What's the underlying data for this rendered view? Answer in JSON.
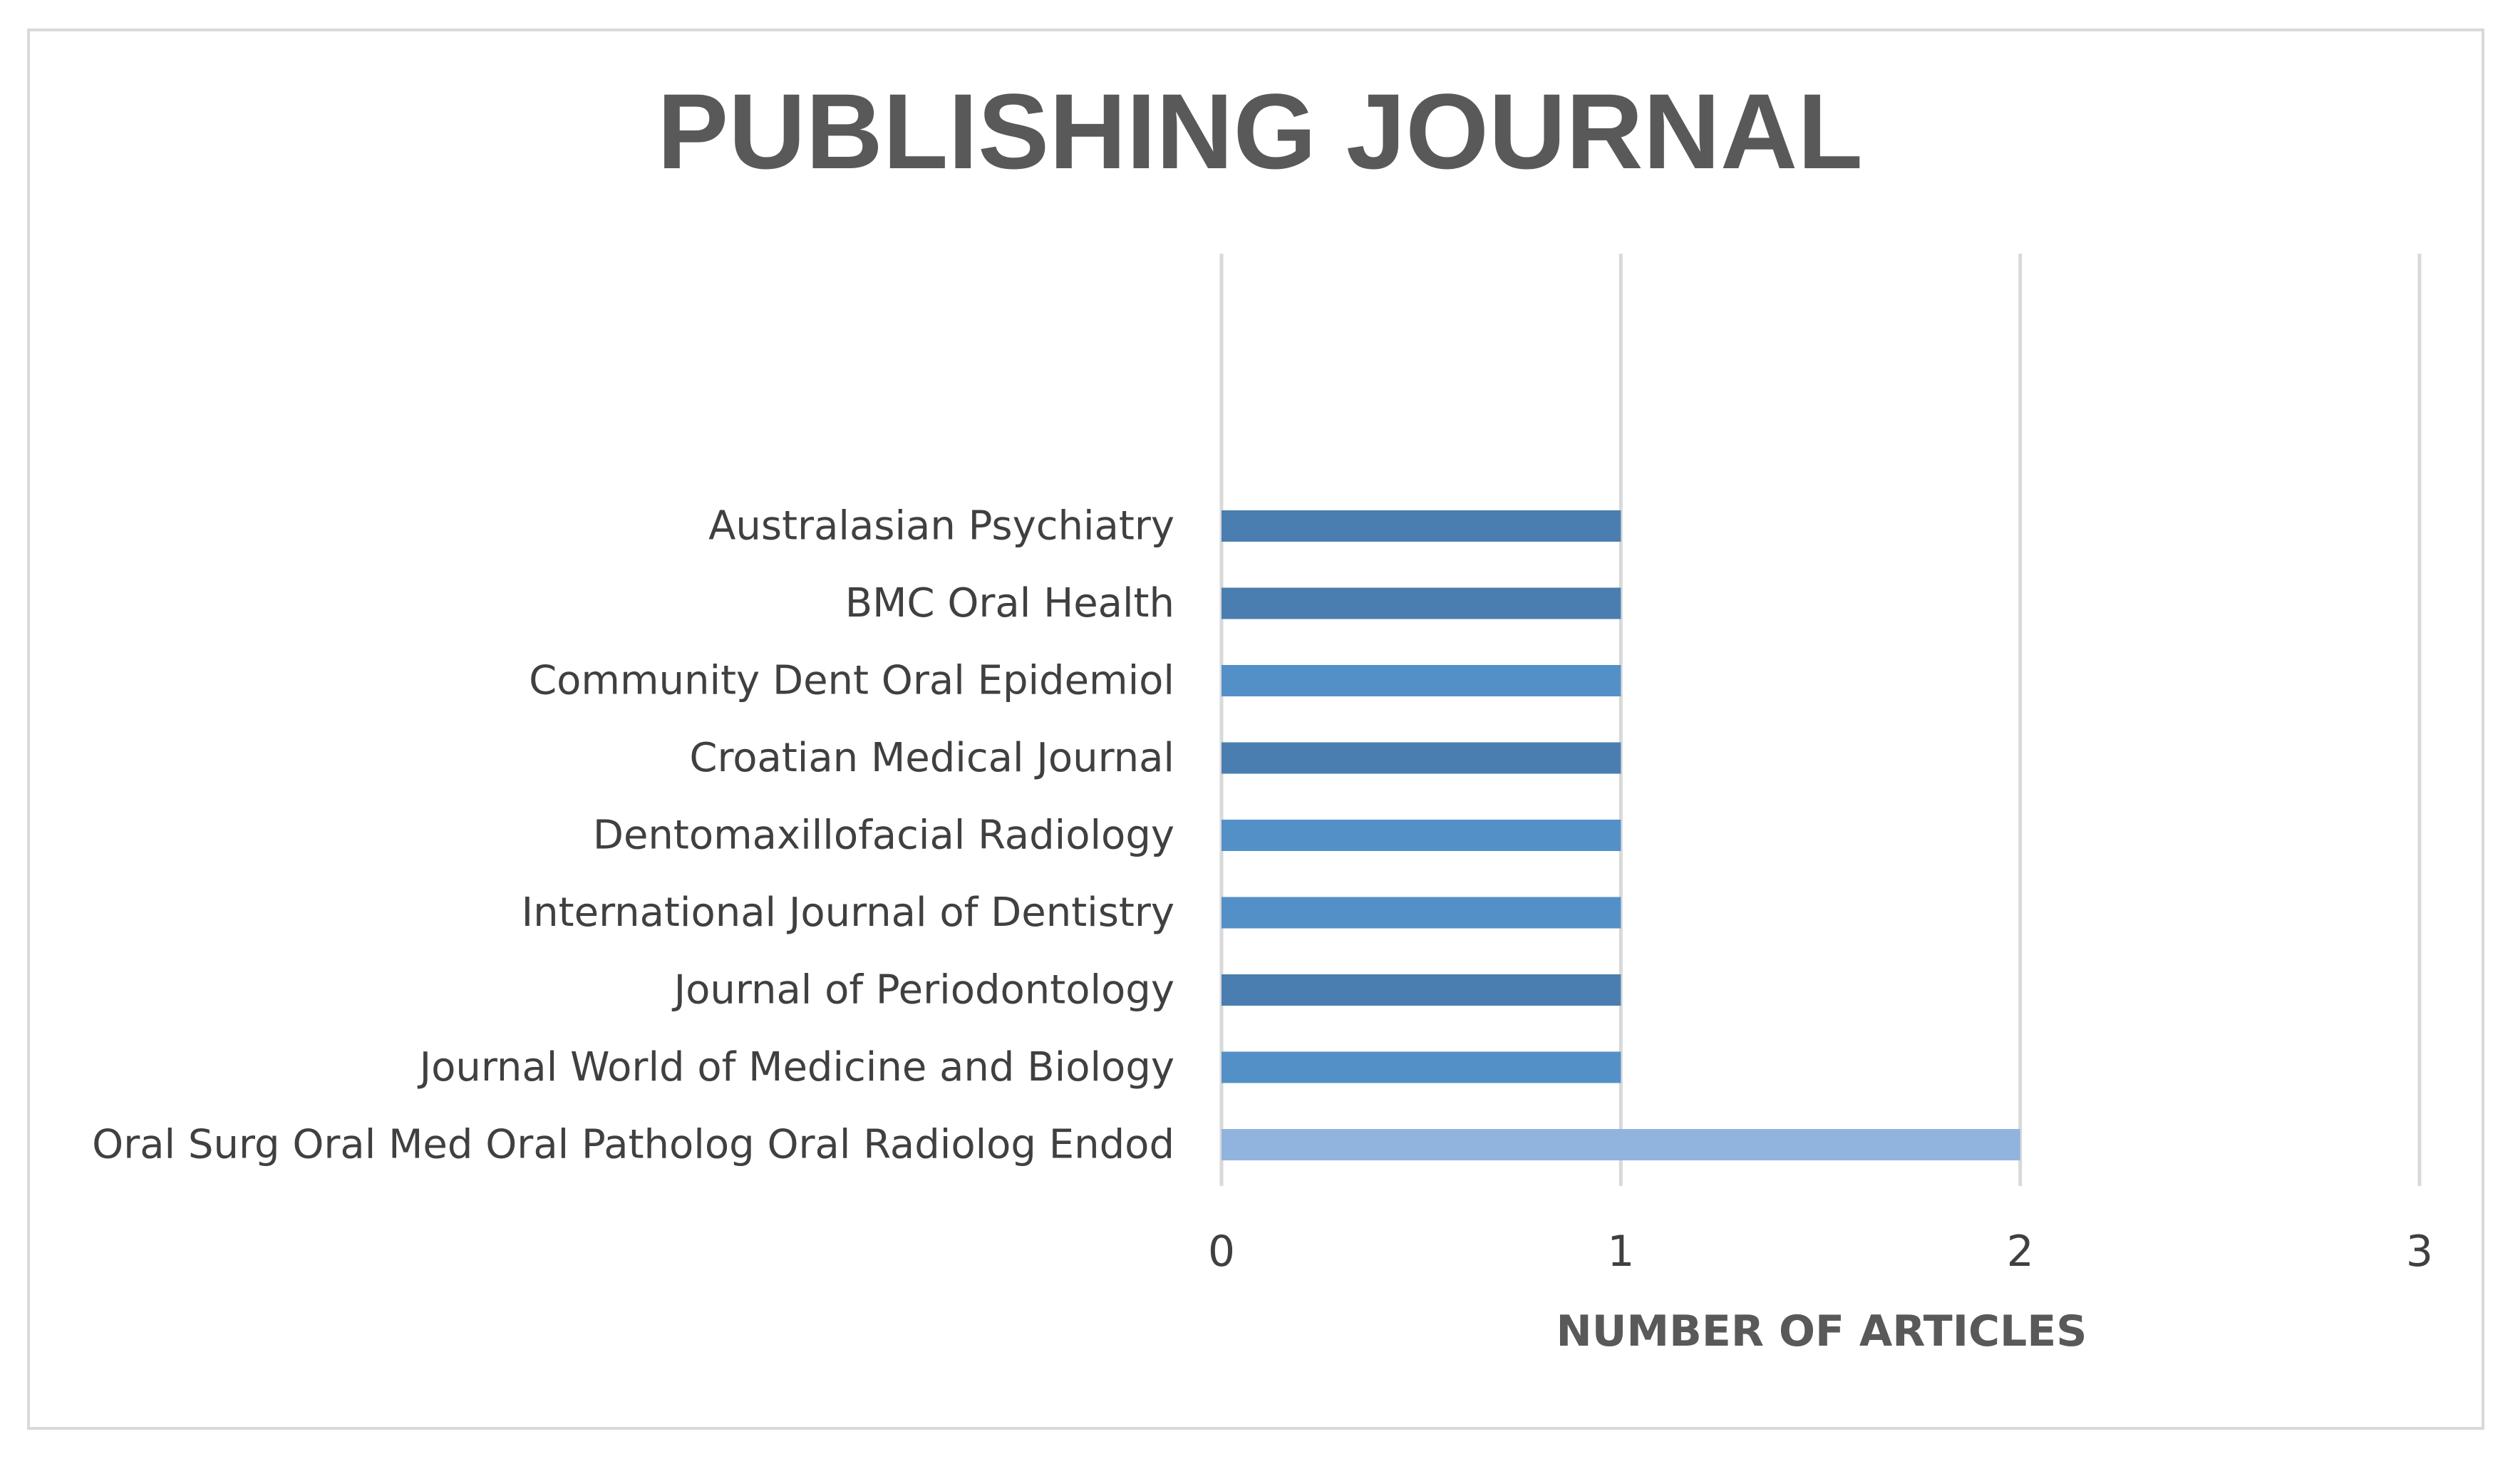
{
  "chart_data": {
    "type": "bar",
    "orientation": "horizontal",
    "title": "PUBLISHING JOURNAL",
    "xlabel": "NUMBER OF ARTICLES",
    "ylabel": "",
    "xlim": [
      0,
      3
    ],
    "ticks": [
      "0",
      "1",
      "2",
      "3"
    ],
    "grid": true,
    "legend": "none",
    "categories": [
      "Australasian Psychiatry",
      "BMC Oral Health",
      "Community Dent Oral Epidemiol",
      "Croatian Medical Journal",
      "Dentomaxillofacial Radiology",
      "International Journal of Dentistry",
      "Journal of Periodontology",
      "Journal World of Medicine and Biology",
      "Oral Surg Oral Med Oral Patholog Oral Radiolog Endod"
    ],
    "values": [
      1,
      1,
      1,
      1,
      1,
      1,
      1,
      1,
      2
    ],
    "bar_colors": [
      "#4a7eb0",
      "#4a7eb0",
      "#5490c8",
      "#4a7eb0",
      "#5490c8",
      "#5490c8",
      "#4a7eb0",
      "#5490c8",
      "#90b4de"
    ]
  }
}
